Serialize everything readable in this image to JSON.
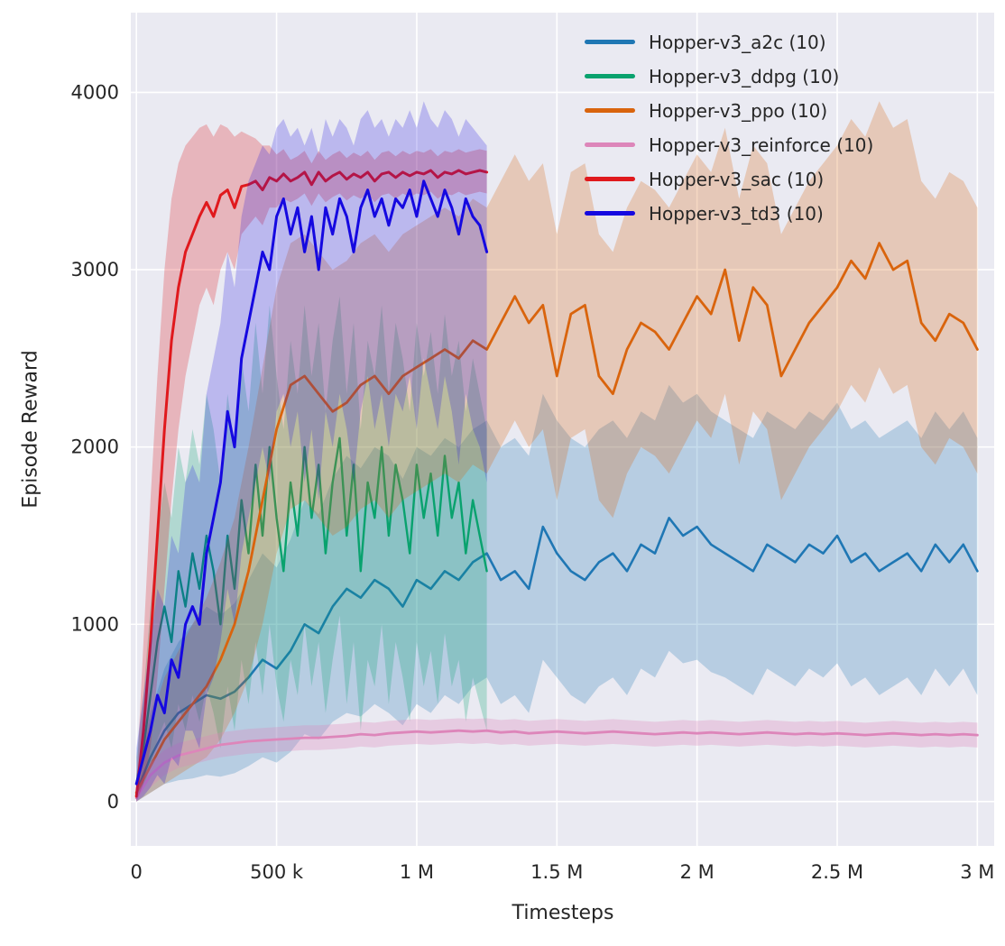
{
  "figure": {
    "background": "#ffffff",
    "plot_background": "#eaeaf2",
    "grid_color": "#ffffff",
    "text_color": "#262626"
  },
  "chart_data": {
    "type": "line",
    "title": "",
    "xlabel": "Timesteps",
    "ylabel": "Episode Reward",
    "grid": true,
    "legend_position": "upper right",
    "xlim": [
      -20000,
      3060000
    ],
    "ylim": [
      -250,
      4450
    ],
    "xticks": [
      {
        "value": 0,
        "label": "0"
      },
      {
        "value": 500000,
        "label": "500 k"
      },
      {
        "value": 1000000,
        "label": "1 M"
      },
      {
        "value": 1500000,
        "label": "1.5 M"
      },
      {
        "value": 2000000,
        "label": "2 M"
      },
      {
        "value": 2500000,
        "label": "2.5 M"
      },
      {
        "value": 3000000,
        "label": "3 M"
      }
    ],
    "yticks": [
      {
        "value": 0,
        "label": "0"
      },
      {
        "value": 1000,
        "label": "1000"
      },
      {
        "value": 2000,
        "label": "2000"
      },
      {
        "value": 3000,
        "label": "3000"
      },
      {
        "value": 4000,
        "label": "4000"
      }
    ],
    "series": [
      {
        "name": "a2c",
        "label": "Hopper-v3_a2c (10)",
        "color": "#1f77b4",
        "linewidth": 2.6,
        "band_alpha": 0.25,
        "x0": 0,
        "dx": 50000,
        "mean": [
          50,
          250,
          400,
          500,
          550,
          600,
          580,
          620,
          700,
          800,
          750,
          850,
          1000,
          950,
          1100,
          1200,
          1150,
          1250,
          1200,
          1100,
          1250,
          1200,
          1300,
          1250,
          1350,
          1400,
          1250,
          1300,
          1200,
          1550,
          1400,
          1300,
          1250,
          1350,
          1400,
          1300,
          1450,
          1400,
          1600,
          1500,
          1550,
          1450,
          1400,
          1350,
          1300,
          1450,
          1400,
          1350,
          1450,
          1400,
          1500,
          1350,
          1400,
          1300,
          1350,
          1400,
          1300,
          1450,
          1350,
          1450,
          1300
        ],
        "lo": [
          0,
          50,
          100,
          120,
          130,
          150,
          140,
          160,
          200,
          250,
          220,
          280,
          380,
          350,
          450,
          500,
          480,
          550,
          500,
          430,
          550,
          500,
          600,
          550,
          650,
          700,
          550,
          600,
          500,
          800,
          700,
          600,
          550,
          650,
          700,
          600,
          750,
          700,
          850,
          780,
          800,
          730,
          700,
          650,
          600,
          750,
          700,
          650,
          750,
          700,
          780,
          650,
          700,
          600,
          650,
          700,
          600,
          750,
          650,
          750,
          600
        ],
        "hi": [
          150,
          500,
          750,
          900,
          1000,
          1100,
          1050,
          1120,
          1250,
          1400,
          1320,
          1480,
          1700,
          1620,
          1820,
          1950,
          1880,
          2000,
          1950,
          1820,
          2000,
          1950,
          2050,
          2000,
          2100,
          2150,
          2000,
          2050,
          1950,
          2300,
          2150,
          2050,
          2000,
          2100,
          2150,
          2050,
          2200,
          2150,
          2350,
          2250,
          2300,
          2200,
          2150,
          2100,
          2050,
          2200,
          2150,
          2100,
          2200,
          2150,
          2250,
          2100,
          2150,
          2050,
          2100,
          2150,
          2050,
          2200,
          2100,
          2200,
          2050
        ]
      },
      {
        "name": "ddpg",
        "label": "Hopper-v3_ddpg (10)",
        "color": "#09a26e",
        "linewidth": 2.4,
        "band_alpha": 0.25,
        "x0": 0,
        "dx": 25000,
        "mean": [
          100,
          300,
          600,
          900,
          1100,
          900,
          1300,
          1100,
          1400,
          1200,
          1500,
          1300,
          1000,
          1500,
          1200,
          1700,
          1400,
          1900,
          1500,
          2000,
          1600,
          1300,
          1800,
          1500,
          2000,
          1600,
          1900,
          1400,
          1800,
          2050,
          1500,
          1900,
          1300,
          1800,
          1600,
          2000,
          1500,
          1900,
          1700,
          1400,
          1900,
          1600,
          1850,
          1500,
          1950,
          1600,
          1800,
          1400,
          1700,
          1500,
          1300
        ],
        "lo": [
          20,
          80,
          200,
          350,
          450,
          300,
          550,
          400,
          600,
          450,
          650,
          500,
          300,
          650,
          400,
          800,
          550,
          900,
          600,
          1000,
          650,
          450,
          800,
          600,
          1000,
          650,
          900,
          500,
          800,
          1050,
          550,
          900,
          400,
          800,
          650,
          1000,
          550,
          900,
          700,
          450,
          900,
          650,
          850,
          550,
          950,
          650,
          800,
          450,
          700,
          550,
          400
        ],
        "hi": [
          250,
          600,
          1100,
          1500,
          1800,
          1600,
          2000,
          1800,
          2100,
          1900,
          2300,
          2100,
          1800,
          2300,
          2000,
          2500,
          2200,
          2700,
          2300,
          2800,
          2400,
          2100,
          2600,
          2300,
          2800,
          2400,
          2700,
          2200,
          2600,
          2850,
          2300,
          2700,
          2100,
          2600,
          2400,
          2800,
          2300,
          2700,
          2500,
          2200,
          2700,
          2400,
          2650,
          2300,
          2750,
          2400,
          2600,
          2200,
          2500,
          2300,
          2100
        ]
      },
      {
        "name": "ppo",
        "label": "Hopper-v3_ppo (10)",
        "color": "#d9640d",
        "linewidth": 2.8,
        "band_alpha": 0.25,
        "x0": 0,
        "dx": 50000,
        "mean": [
          50,
          200,
          350,
          450,
          550,
          650,
          800,
          1000,
          1300,
          1700,
          2100,
          2350,
          2400,
          2300,
          2200,
          2250,
          2350,
          2400,
          2300,
          2400,
          2450,
          2500,
          2550,
          2500,
          2600,
          2550,
          2700,
          2850,
          2700,
          2800,
          2400,
          2750,
          2800,
          2400,
          2300,
          2550,
          2700,
          2650,
          2550,
          2700,
          2850,
          2750,
          3000,
          2600,
          2900,
          2800,
          2400,
          2550,
          2700,
          2800,
          2900,
          3050,
          2950,
          3150,
          3000,
          3050,
          2700,
          2600,
          2750,
          2700,
          2550
        ],
        "lo": [
          0,
          50,
          100,
          150,
          200,
          250,
          350,
          500,
          700,
          1000,
          1400,
          1650,
          1700,
          1600,
          1500,
          1550,
          1650,
          1700,
          1600,
          1700,
          1750,
          1800,
          1850,
          1800,
          1900,
          1850,
          2000,
          2150,
          2000,
          2100,
          1700,
          2050,
          2100,
          1700,
          1600,
          1850,
          2000,
          1950,
          1850,
          2000,
          2150,
          2050,
          2300,
          1900,
          2200,
          2100,
          1700,
          1850,
          2000,
          2100,
          2200,
          2350,
          2250,
          2450,
          2300,
          2350,
          2000,
          1900,
          2050,
          2000,
          1850
        ],
        "hi": [
          150,
          450,
          700,
          850,
          1000,
          1150,
          1350,
          1600,
          2000,
          2450,
          2900,
          3150,
          3200,
          3100,
          3000,
          3050,
          3150,
          3200,
          3100,
          3200,
          3250,
          3300,
          3350,
          3300,
          3400,
          3350,
          3500,
          3650,
          3500,
          3600,
          3200,
          3550,
          3600,
          3200,
          3100,
          3350,
          3500,
          3450,
          3350,
          3500,
          3650,
          3550,
          3800,
          3400,
          3700,
          3600,
          3200,
          3350,
          3500,
          3600,
          3700,
          3850,
          3750,
          3950,
          3800,
          3850,
          3500,
          3400,
          3550,
          3500,
          3350
        ]
      },
      {
        "name": "reinforce",
        "label": "Hopper-v3_reinforce (10)",
        "color": "#dd86ba",
        "linewidth": 2.8,
        "band_alpha": 0.3,
        "x0": 0,
        "dx": 50000,
        "mean": [
          20,
          150,
          220,
          260,
          280,
          300,
          320,
          330,
          340,
          345,
          350,
          355,
          360,
          360,
          365,
          370,
          380,
          375,
          385,
          390,
          395,
          390,
          395,
          400,
          395,
          400,
          390,
          395,
          385,
          390,
          395,
          390,
          385,
          390,
          395,
          390,
          385,
          380,
          385,
          390,
          385,
          390,
          385,
          380,
          385,
          390,
          385,
          380,
          385,
          380,
          385,
          380,
          375,
          380,
          385,
          380,
          375,
          380,
          375,
          380,
          375
        ],
        "lo": [
          0,
          80,
          150,
          190,
          210,
          230,
          250,
          260,
          270,
          275,
          280,
          285,
          290,
          290,
          295,
          300,
          310,
          305,
          315,
          320,
          325,
          320,
          325,
          330,
          325,
          330,
          320,
          325,
          315,
          320,
          325,
          320,
          315,
          320,
          325,
          320,
          315,
          310,
          315,
          320,
          315,
          320,
          315,
          310,
          315,
          320,
          315,
          310,
          315,
          310,
          315,
          310,
          305,
          310,
          315,
          310,
          305,
          310,
          305,
          310,
          305
        ],
        "hi": [
          60,
          220,
          290,
          330,
          350,
          370,
          390,
          400,
          410,
          415,
          420,
          425,
          430,
          430,
          435,
          440,
          450,
          445,
          455,
          460,
          465,
          460,
          465,
          470,
          465,
          470,
          460,
          465,
          455,
          460,
          465,
          460,
          455,
          460,
          465,
          460,
          455,
          450,
          455,
          460,
          455,
          460,
          455,
          450,
          455,
          460,
          455,
          450,
          455,
          450,
          455,
          450,
          445,
          450,
          455,
          450,
          445,
          450,
          445,
          450,
          445
        ]
      },
      {
        "name": "sac",
        "label": "Hopper-v3_sac (10)",
        "color": "#e0191d",
        "linewidth": 3.0,
        "band_alpha": 0.25,
        "x0": 0,
        "dx": 25000,
        "mean": [
          30,
          400,
          900,
          1500,
          2100,
          2600,
          2900,
          3100,
          3200,
          3300,
          3380,
          3300,
          3420,
          3450,
          3350,
          3470,
          3480,
          3500,
          3450,
          3520,
          3500,
          3540,
          3500,
          3520,
          3550,
          3480,
          3550,
          3500,
          3530,
          3550,
          3510,
          3540,
          3520,
          3550,
          3500,
          3540,
          3550,
          3520,
          3550,
          3530,
          3550,
          3540,
          3560,
          3520,
          3550,
          3540,
          3560,
          3540,
          3550,
          3560,
          3550
        ],
        "lo": [
          0,
          100,
          300,
          700,
          1200,
          1700,
          2100,
          2400,
          2600,
          2800,
          2900,
          2800,
          3000,
          3100,
          3000,
          3200,
          3250,
          3300,
          3250,
          3350,
          3350,
          3400,
          3380,
          3400,
          3430,
          3360,
          3430,
          3380,
          3410,
          3430,
          3390,
          3420,
          3400,
          3430,
          3380,
          3420,
          3430,
          3400,
          3430,
          3410,
          3430,
          3420,
          3440,
          3400,
          3430,
          3420,
          3440,
          3420,
          3430,
          3440,
          3430
        ],
        "hi": [
          100,
          900,
          1700,
          2400,
          3000,
          3400,
          3600,
          3700,
          3750,
          3800,
          3820,
          3750,
          3820,
          3800,
          3750,
          3780,
          3760,
          3740,
          3700,
          3700,
          3650,
          3680,
          3620,
          3640,
          3670,
          3600,
          3670,
          3620,
          3650,
          3670,
          3630,
          3660,
          3640,
          3670,
          3620,
          3660,
          3670,
          3640,
          3670,
          3650,
          3670,
          3660,
          3680,
          3640,
          3670,
          3660,
          3680,
          3660,
          3670,
          3680,
          3670
        ]
      },
      {
        "name": "td3",
        "label": "Hopper-v3_td3 (10)",
        "color": "#1508e0",
        "linewidth": 3.0,
        "band_alpha": 0.22,
        "x0": 0,
        "dx": 25000,
        "mean": [
          100,
          250,
          400,
          600,
          500,
          800,
          700,
          1000,
          1100,
          1000,
          1400,
          1600,
          1800,
          2200,
          2000,
          2500,
          2700,
          2900,
          3100,
          3000,
          3300,
          3400,
          3200,
          3350,
          3100,
          3300,
          3000,
          3350,
          3200,
          3400,
          3300,
          3100,
          3350,
          3450,
          3300,
          3400,
          3250,
          3400,
          3350,
          3450,
          3300,
          3500,
          3400,
          3300,
          3450,
          3350,
          3200,
          3400,
          3300,
          3250,
          3100
        ],
        "lo": [
          0,
          30,
          80,
          150,
          100,
          250,
          200,
          400,
          400,
          300,
          600,
          700,
          900,
          1200,
          1000,
          1400,
          1600,
          1800,
          2000,
          1800,
          2200,
          2300,
          2000,
          2200,
          1800,
          2100,
          1700,
          2200,
          2000,
          2300,
          2100,
          1800,
          2200,
          2400,
          2100,
          2300,
          2000,
          2300,
          2200,
          2400,
          2100,
          2500,
          2300,
          2100,
          2400,
          2200,
          1900,
          2300,
          2100,
          2000,
          1800
        ],
        "hi": [
          300,
          600,
          900,
          1200,
          1100,
          1500,
          1400,
          1800,
          1900,
          1800,
          2300,
          2500,
          2700,
          3100,
          2900,
          3300,
          3500,
          3600,
          3700,
          3650,
          3800,
          3850,
          3750,
          3800,
          3700,
          3800,
          3650,
          3850,
          3750,
          3850,
          3800,
          3700,
          3850,
          3900,
          3800,
          3850,
          3750,
          3850,
          3800,
          3900,
          3800,
          3950,
          3850,
          3800,
          3900,
          3850,
          3750,
          3850,
          3800,
          3750,
          3700
        ]
      }
    ]
  }
}
